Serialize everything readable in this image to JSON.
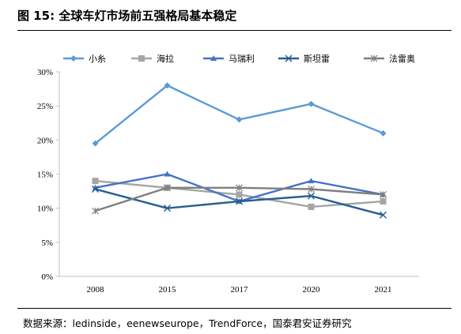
{
  "figure": {
    "title": "图 15: 全球车灯市场前五强格局基本稳定",
    "source": "数据来源：ledinside，eenewseurope，TrendForce，国泰君安证券研究"
  },
  "chart_data": {
    "type": "line",
    "categories": [
      "2008",
      "2015",
      "2017",
      "2020",
      "2021"
    ],
    "y_ticks": [
      "0%",
      "5%",
      "10%",
      "15%",
      "20%",
      "25%",
      "30%"
    ],
    "ylim": [
      0,
      30
    ],
    "y_unit": "%",
    "grid": false,
    "legend_position": "top",
    "series": [
      {
        "name": "小糸",
        "values": [
          19.5,
          28,
          23,
          25.3,
          21
        ],
        "color": "#5b9bd5",
        "marker": "diamond"
      },
      {
        "name": "海拉",
        "values": [
          14,
          13,
          12,
          10.2,
          11
        ],
        "color": "#a5a5a5",
        "marker": "square"
      },
      {
        "name": "马瑞利",
        "values": [
          13,
          15,
          11,
          14,
          12
        ],
        "color": "#4472c4",
        "marker": "triangle"
      },
      {
        "name": "斯坦雷",
        "values": [
          12.8,
          10,
          11,
          11.8,
          9
        ],
        "color": "#255e91",
        "marker": "x"
      },
      {
        "name": "法雷奥",
        "values": [
          9.6,
          13,
          13,
          12.8,
          12
        ],
        "color": "#7f7f7f",
        "marker": "star"
      }
    ]
  }
}
